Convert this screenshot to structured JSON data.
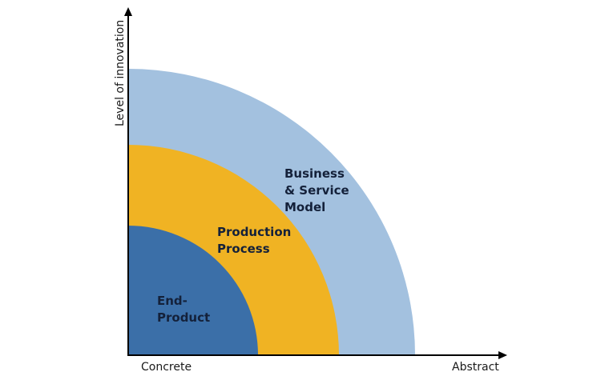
{
  "axes": {
    "y_label": "Level of innovation",
    "x_start_label": "Concrete",
    "x_end_label": "Abstract"
  },
  "rings": [
    {
      "label": "End-\nProduct",
      "color": "#3b6fa8"
    },
    {
      "label": "Production\nProcess",
      "color": "#f0b323"
    },
    {
      "label": "Business\n& Service\nModel",
      "color": "#a3c1df"
    }
  ]
}
